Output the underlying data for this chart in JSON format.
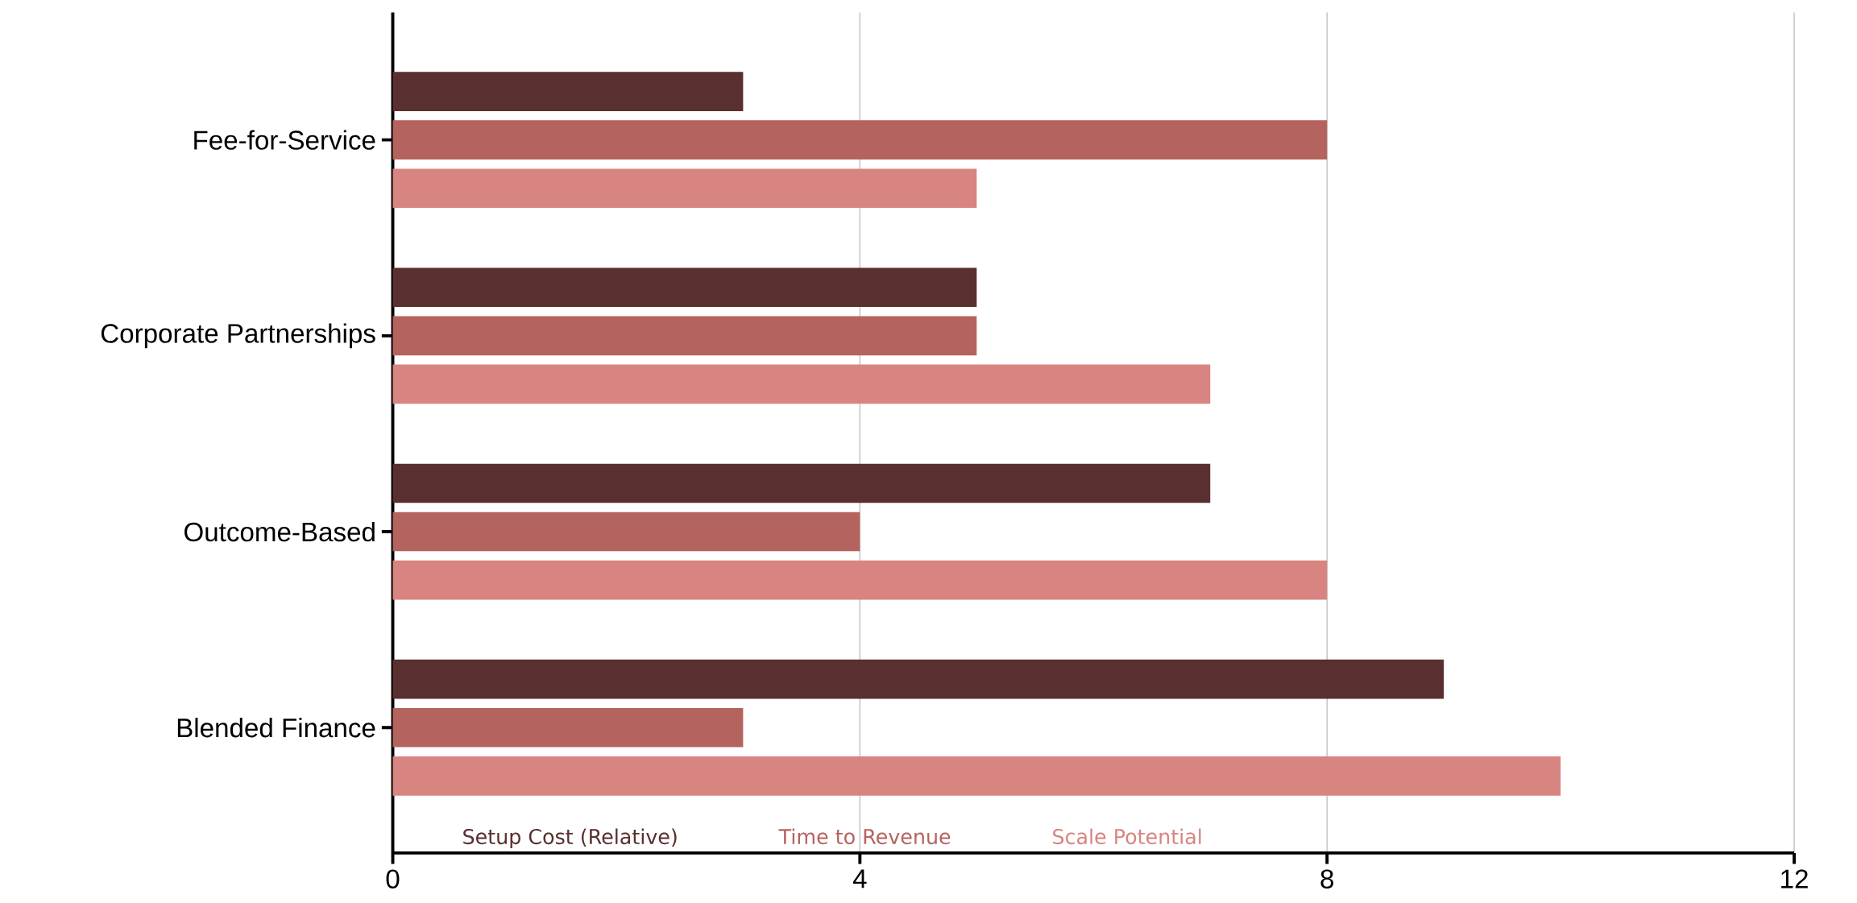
{
  "chart_data": {
    "type": "bar",
    "orientation": "horizontal",
    "categories": [
      "Fee-for-Service",
      "Corporate Partnerships",
      "Outcome-Based",
      "Blended Finance"
    ],
    "series": [
      {
        "name": "Setup Cost (Relative)",
        "color": "#5a2f2f",
        "values": [
          3,
          5,
          7,
          9
        ]
      },
      {
        "name": "Time to Revenue",
        "color": "#b5635f",
        "values": [
          8,
          5,
          4,
          3
        ]
      },
      {
        "name": "Scale Potential",
        "color": "#d88480",
        "values": [
          5,
          7,
          8,
          10
        ]
      }
    ],
    "xlim": [
      0,
      12
    ],
    "xticks": [
      0,
      4,
      8,
      12
    ],
    "grid": "x",
    "legend": "bottom"
  }
}
